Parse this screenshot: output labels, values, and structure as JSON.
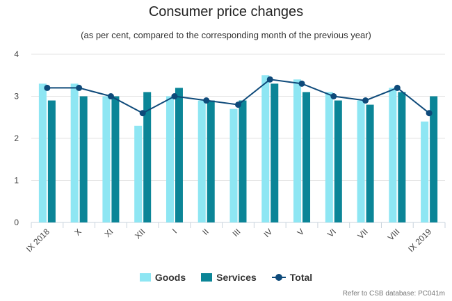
{
  "chart_data": {
    "type": "bar",
    "title": "Consumer price changes",
    "subtitle": "(as per cent, compared to the corresponding month of the previous year)",
    "categories": [
      "IX 2018",
      "X",
      "XI",
      "XII",
      "I",
      "II",
      "III",
      "IV",
      "V",
      "VI",
      "VII",
      "VIII",
      "IX 2019"
    ],
    "series": [
      {
        "name": "Goods",
        "type": "bar",
        "color": "#8ee6f3",
        "values": [
          3.3,
          3.3,
          3.0,
          2.3,
          3.0,
          2.9,
          2.7,
          3.5,
          3.4,
          3.1,
          2.9,
          3.2,
          2.4
        ]
      },
      {
        "name": "Services",
        "type": "bar",
        "color": "#0b8597",
        "values": [
          2.9,
          3.0,
          3.0,
          3.1,
          3.2,
          2.9,
          2.9,
          3.3,
          3.1,
          2.9,
          2.8,
          3.1,
          3.0
        ]
      },
      {
        "name": "Total",
        "type": "line",
        "color": "#0e4a7a",
        "values": [
          3.2,
          3.2,
          3.0,
          2.6,
          3.0,
          2.9,
          2.8,
          3.4,
          3.3,
          3.0,
          2.9,
          3.2,
          2.6
        ]
      }
    ],
    "ylim": [
      0,
      4
    ],
    "yticks": [
      0,
      1,
      2,
      3,
      4
    ],
    "grid": true,
    "legend_position": "bottom-center"
  },
  "credit": "Refer to CSB database: PC041m"
}
